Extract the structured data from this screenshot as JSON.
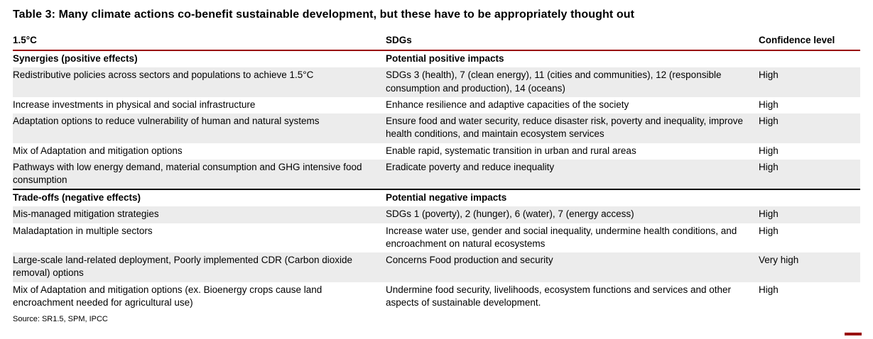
{
  "title": "Table 3: Many climate actions co-benefit sustainable development, but these have to be appropriately thought out",
  "colors": {
    "accent_red": "#990000",
    "row_shade": "#ececec",
    "divider_black": "#000000"
  },
  "table": {
    "columns": [
      "1.5°C",
      "SDGs",
      "Confidence level"
    ],
    "sections": [
      {
        "header": [
          "Synergies (positive effects)",
          "Potential positive impacts",
          ""
        ],
        "rows": [
          [
            "Redistributive policies across sectors and populations to achieve 1.5°C",
            "SDGs 3 (health), 7 (clean energy), 11 (cities and communities), 12 (responsible consumption and production), 14 (oceans)",
            "High"
          ],
          [
            "Increase investments in physical and social infrastructure",
            "Enhance resilience and adaptive capacities of the society",
            "High"
          ],
          [
            "Adaptation options to reduce vulnerability of human and natural systems",
            "Ensure food and water security, reduce disaster risk, poverty and inequality, improve health conditions, and maintain ecosystem services",
            "High"
          ],
          [
            "Mix of Adaptation and mitigation options",
            "Enable rapid, systematic transition in urban and rural areas",
            "High"
          ],
          [
            "Pathways with low energy demand, material consumption and GHG intensive food consumption",
            "Eradicate poverty and reduce inequality",
            "High"
          ]
        ]
      },
      {
        "header": [
          "Trade-offs (negative effects)",
          "Potential negative impacts",
          ""
        ],
        "rows": [
          [
            "Mis-managed mitigation strategies",
            "SDGs 1 (poverty), 2 (hunger), 6 (water), 7 (energy access)",
            "High"
          ],
          [
            "Maladaptation in multiple sectors",
            "Increase water use, gender and social inequality, undermine health conditions, and encroachment on natural ecosystems",
            "High"
          ],
          [
            "Large-scale land-related deployment, Poorly implemented CDR (Carbon dioxide removal) options",
            "Concerns Food production and security",
            "Very high"
          ],
          [
            "Mix of Adaptation and mitigation options (ex. Bioenergy crops cause land encroachment needed for agricultural use)",
            "Undermine food security, livelihoods, ecosystem functions and services and other aspects of sustainable development.",
            "High"
          ]
        ]
      }
    ],
    "source": "Source: SR1.5, SPM, IPCC"
  }
}
